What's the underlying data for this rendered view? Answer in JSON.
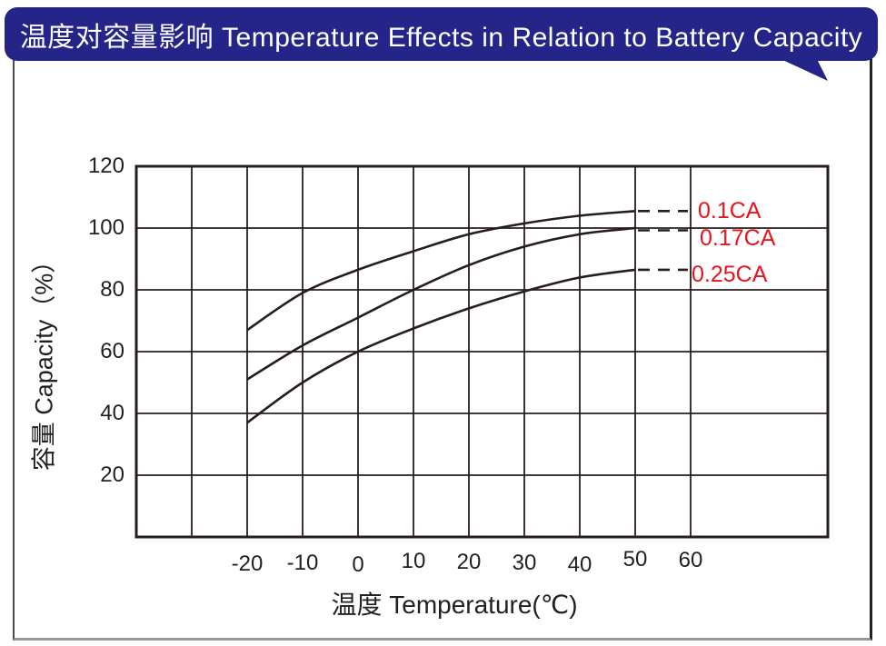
{
  "page": {
    "background": "#ffffff",
    "border_color": "#4d4d4d"
  },
  "header": {
    "title": "温度对容量影响  Temperature Effects in Relation to Battery Capacity",
    "bg_color": "#252489",
    "text_color": "#ffffff"
  },
  "chart_data": {
    "type": "line",
    "title": "温度对容量影响 Temperature Effects in Relation to Battery Capacity",
    "xlabel": "温度  Temperature(℃)",
    "ylabel": "容量  Capacity（%）",
    "x_ticks": [
      -20,
      -10,
      0,
      10,
      20,
      30,
      40,
      50,
      60
    ],
    "y_ticks": [
      120,
      100,
      80,
      60,
      40,
      20
    ],
    "xlim": [
      -40,
      85
    ],
    "ylim": [
      0,
      120
    ],
    "grid": true,
    "legend_position": "inside-right",
    "line_color": "#261e1b",
    "tick_color": "#231f20",
    "label_color": "#e8131d",
    "x": [
      -20,
      -10,
      0,
      10,
      20,
      30,
      40,
      50
    ],
    "series": [
      {
        "name": "0.1CA",
        "values": [
          67,
          79,
          86.5,
          92.5,
          98,
          101.5,
          104,
          105.5
        ],
        "dash_end_x": 60
      },
      {
        "name": "0.17CA",
        "values": [
          51,
          62,
          71,
          80,
          88,
          94,
          98,
          100
        ],
        "dash_end_x": 60
      },
      {
        "name": "0.25CA",
        "values": [
          37,
          50,
          60,
          67.5,
          74,
          79.5,
          84,
          86.5
        ],
        "dash_end_x": 60
      }
    ],
    "annotation_note": "solid curves end at 50°C, dashed extensions continue to 60°C toward red rate labels"
  }
}
